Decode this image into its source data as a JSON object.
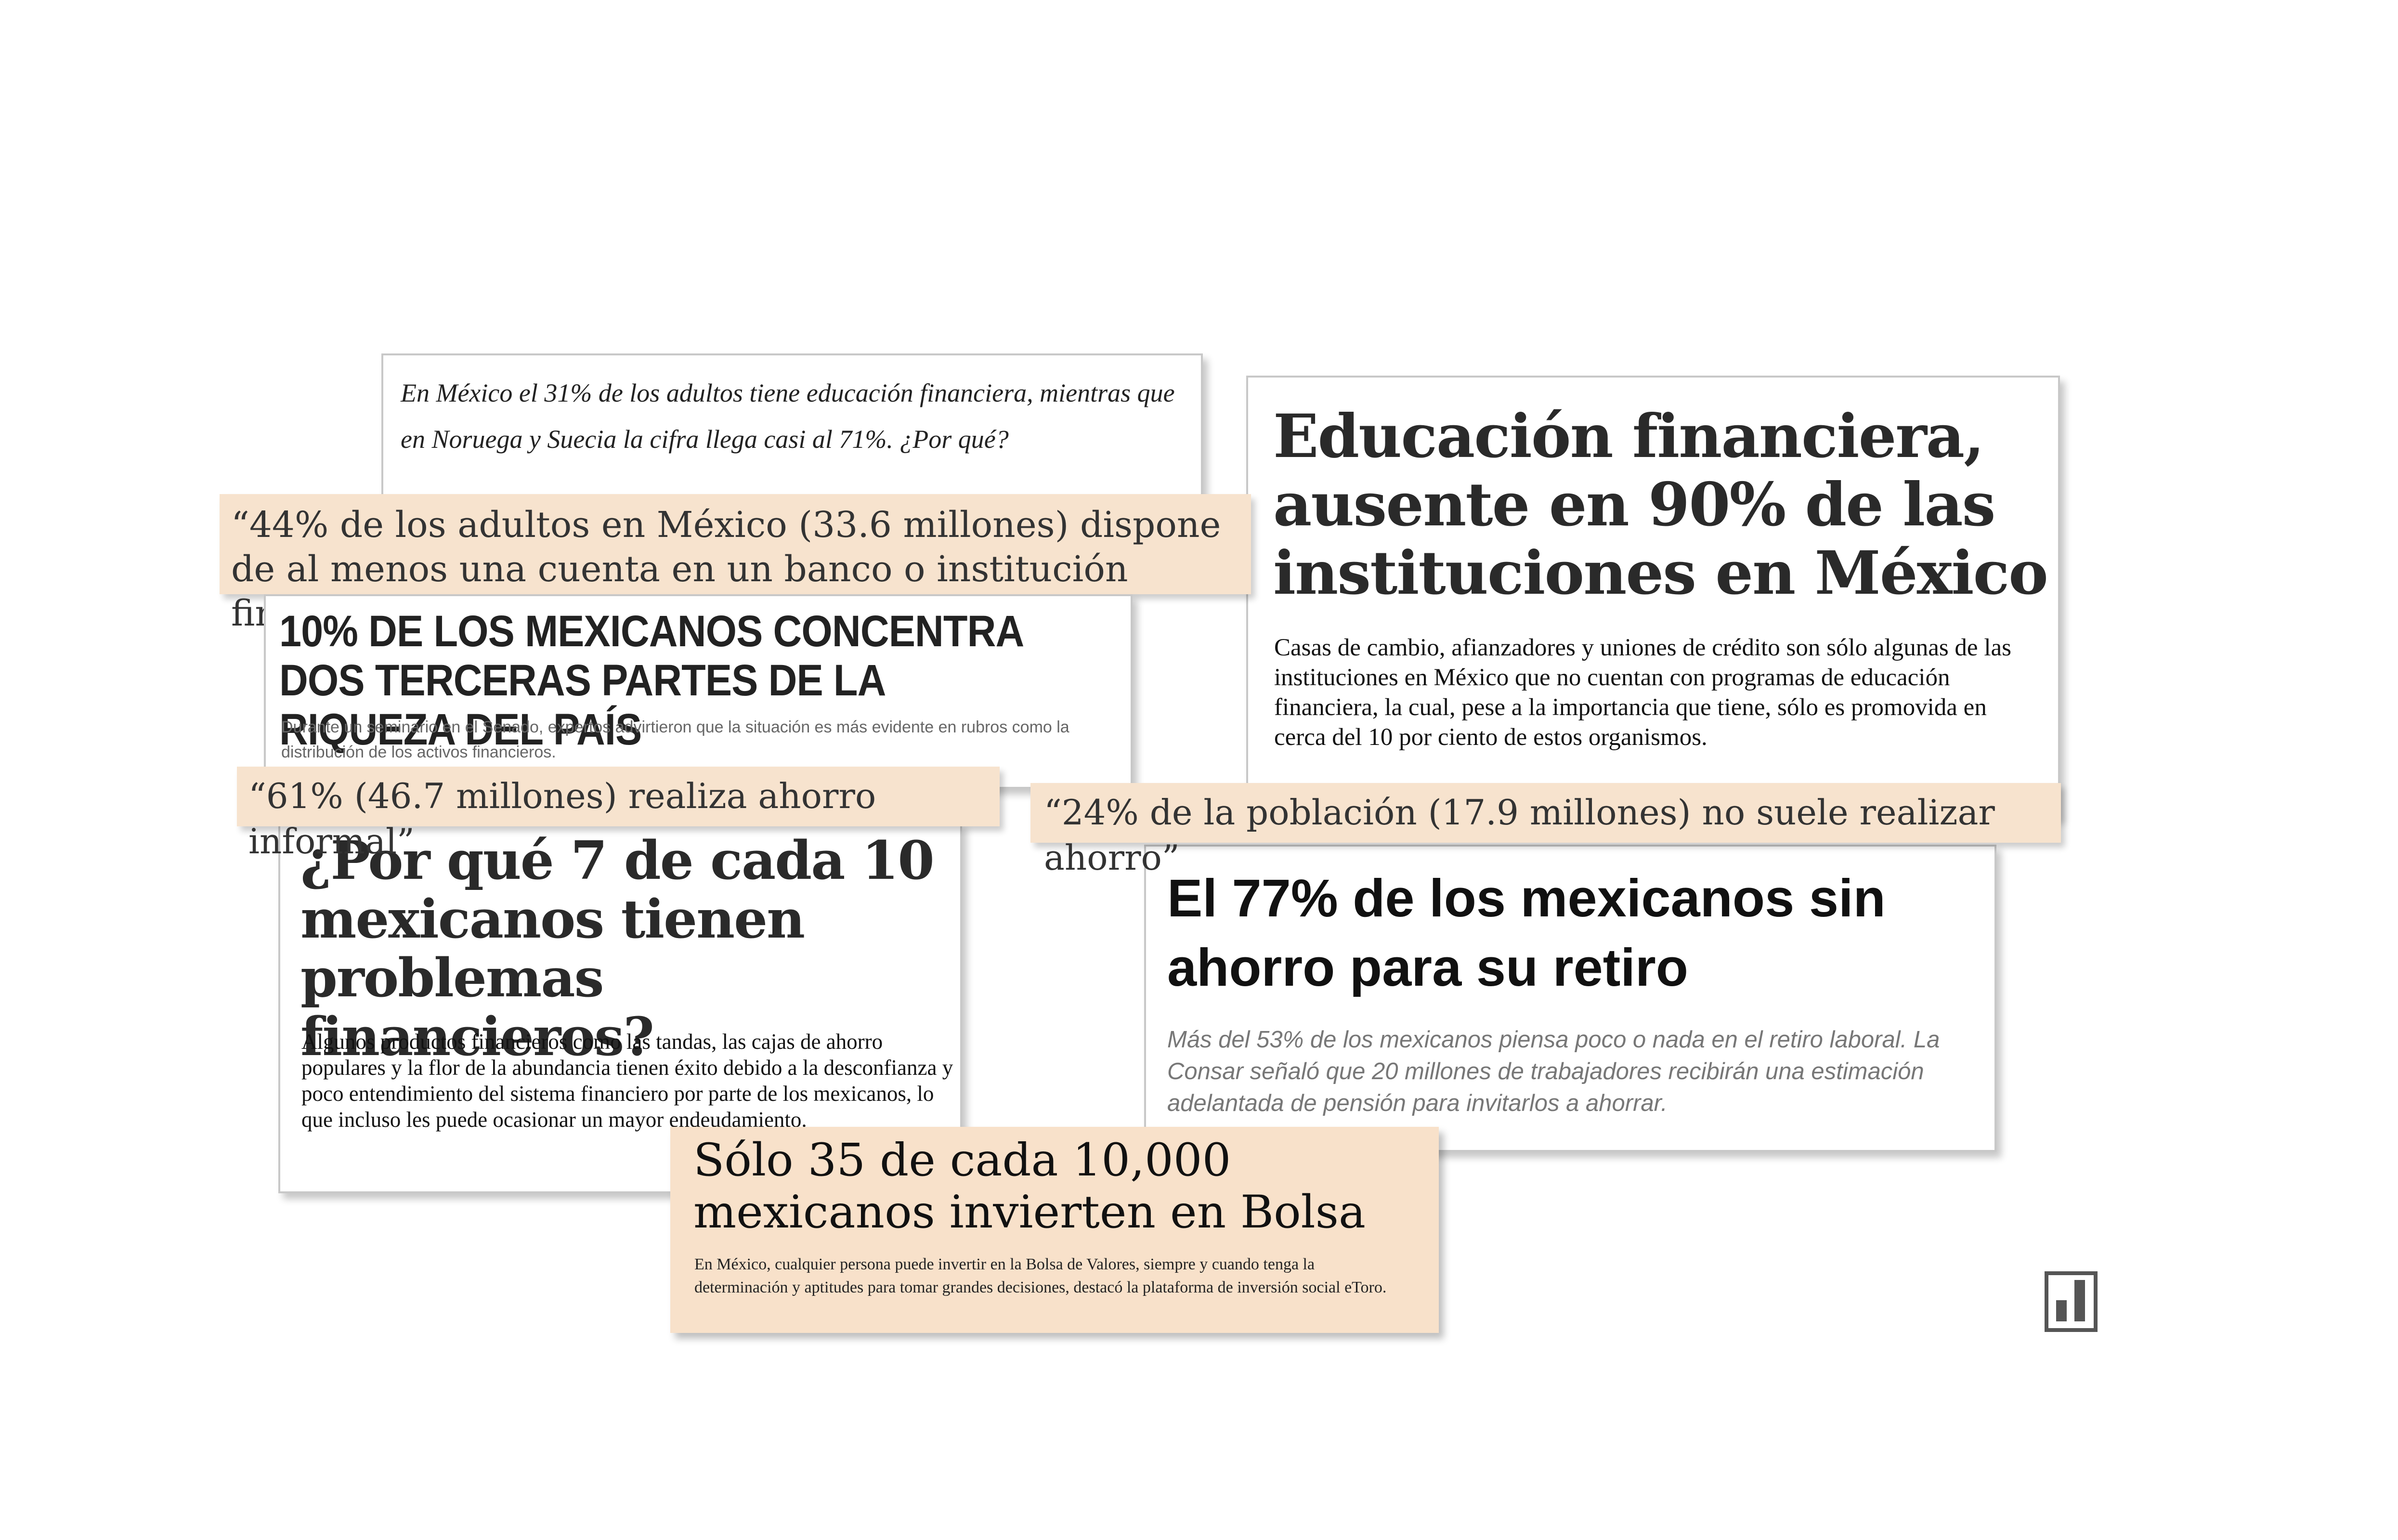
{
  "cards": {
    "noruega": {
      "text": "En México el 31% de los adultos tiene educación financiera, mientras que en Noruega y Suecia la cifra llega casi al 71%. ¿Por qué?"
    },
    "educacion": {
      "headline": "Educación financiera, ausente en 90% de las instituciones en México",
      "summary": "Casas de cambio, afianzadores y uniones de crédito son sólo algunas de las instituciones en México que no cuentan con programas de educación financiera, la cual, pese a la importancia que tiene, sólo es promovida en cerca del 10 por ciento de estos organismos."
    },
    "riqueza": {
      "headline": "10% DE LOS MEXICANOS CONCENTRA DOS TERCERAS PARTES DE LA RIQUEZA DEL PAÍS",
      "summary": "Durante un seminario en el Senado, expertos advirtieron que la situación es más evidente en rubros como la distribución de los activos financieros."
    },
    "problemas": {
      "headline": "¿Por qué 7 de cada 10 mexicanos tienen problemas financieros?",
      "summary": "Algunos productos financieros como las tandas, las cajas de ahorro populares y la flor de la abundancia tienen éxito debido a la desconfianza y poco entendimiento del sistema financiero por parte de los mexicanos, lo que incluso les puede ocasionar un mayor endeudamiento."
    },
    "retiro": {
      "headline": "El 77% de los mexicanos sin ahorro para su retiro",
      "summary": "Más del 53% de los mexicanos piensa poco o nada en el retiro laboral. La Consar señaló que 20 millones de trabajadores recibirán una estimación adelantada de pensión para invitarlos a ahorrar."
    },
    "bolsa": {
      "headline": "Sólo 35 de cada 10,000 mexicanos invierten en Bolsa",
      "summary": "En México, cualquier persona puede invertir en la Bolsa de Valores, siempre y cuando tenga la determinación y aptitudes para tomar grandes decisiones, destacó la plataforma de inversión social eToro."
    }
  },
  "quotes": {
    "cuenta": "“44% de los adultos en México (33.6 millones) dispone de al menos una cuenta en un banco o institución financiera”",
    "informal": "“61% (46.7 millones) realiza ahorro informal”",
    "sin_ahorro": "“24% de la población (17.9 millones) no suele realizar ahorro”"
  },
  "icons": {
    "corner": "bar-chart-icon"
  },
  "colors": {
    "quote_background": "#f7e3ce",
    "card_border": "#c8c8c8"
  }
}
